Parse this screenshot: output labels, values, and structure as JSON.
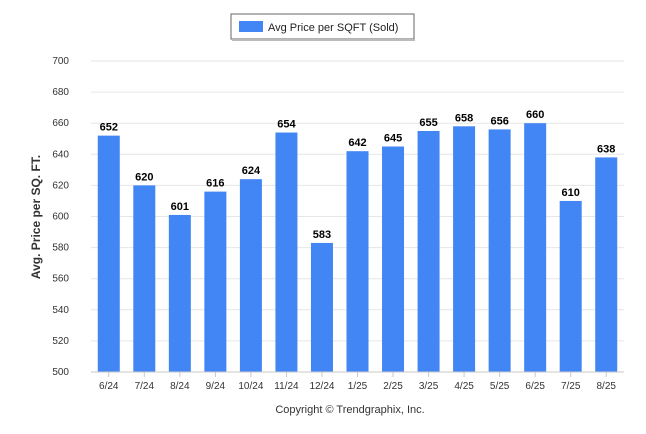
{
  "chart_data": {
    "type": "bar",
    "title": "",
    "xlabel": "",
    "ylabel": "Avg. Price per SQ. FT.",
    "categories": [
      "6/24",
      "7/24",
      "8/24",
      "9/24",
      "10/24",
      "11/24",
      "12/24",
      "1/25",
      "2/25",
      "3/25",
      "4/25",
      "5/25",
      "6/25",
      "7/25",
      "8/25"
    ],
    "series": [
      {
        "name": "Avg Price per SQFT (Sold)",
        "values": [
          652,
          620,
          601,
          616,
          624,
          654,
          583,
          642,
          645,
          655,
          658,
          656,
          660,
          610,
          638
        ],
        "color": "#4285f4"
      }
    ],
    "ylim": [
      500,
      700
    ],
    "yticks": [
      500,
      520,
      540,
      560,
      580,
      600,
      620,
      640,
      660,
      680,
      700
    ],
    "grid": true,
    "legend_position": "top-center",
    "data_labels": true
  },
  "footer": {
    "copyright": "Copyright © Trendgraphix, Inc."
  }
}
